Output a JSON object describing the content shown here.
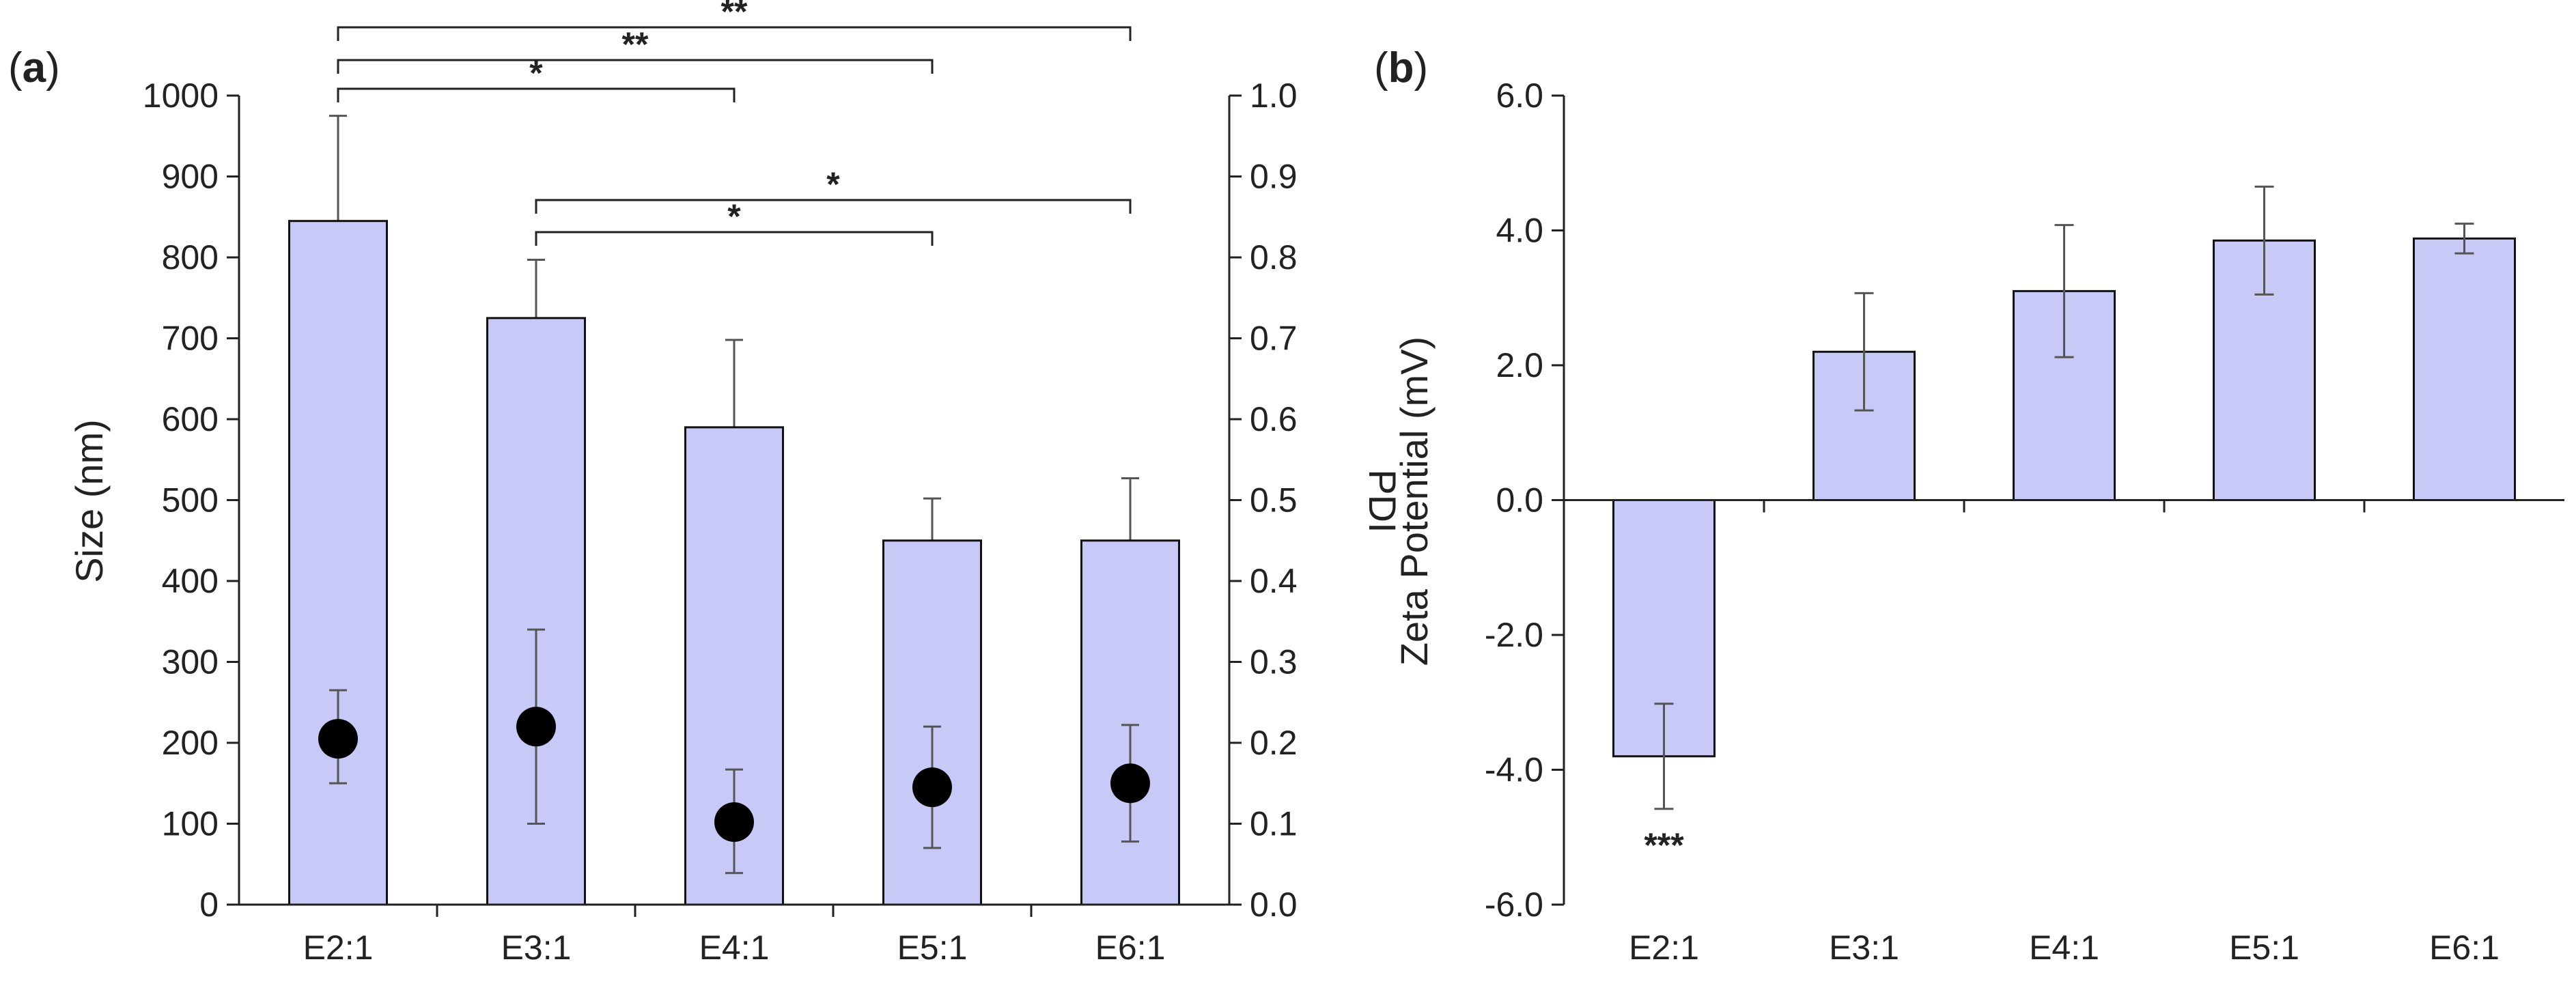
{
  "colors": {
    "bar_fill": "#c9c9f7",
    "bar_stroke": "#111111",
    "marker": "#000000",
    "error": "#555555",
    "axis": "#222222"
  },
  "chart_data": [
    {
      "type": "bar",
      "panel_label": "(a)",
      "panel_letter": "a",
      "categories": [
        "E2:1",
        "E3:1",
        "E4:1",
        "E5:1",
        "E6:1"
      ],
      "series": [
        {
          "name": "Size (nm)",
          "axis": "left",
          "values": [
            845,
            725,
            590,
            450,
            450
          ],
          "error_plus": [
            130,
            72,
            108,
            52,
            77
          ],
          "error_minus": [
            0,
            0,
            0,
            0,
            0
          ]
        },
        {
          "name": "PDI",
          "axis": "right",
          "marker": "circle",
          "values": [
            0.205,
            0.22,
            0.102,
            0.145,
            0.15
          ],
          "error_plus": [
            0.06,
            0.12,
            0.065,
            0.075,
            0.072
          ],
          "error_minus": [
            0.055,
            0.12,
            0.063,
            0.075,
            0.072
          ]
        }
      ],
      "ylabel": "Size (nm)",
      "ylim": [
        0,
        1000
      ],
      "yticks": [
        "0",
        "100",
        "200",
        "300",
        "400",
        "500",
        "600",
        "700",
        "800",
        "900",
        "1000"
      ],
      "y2label": "PDI",
      "y2lim": [
        0,
        1
      ],
      "y2ticks": [
        "0.0",
        "0.1",
        "0.2",
        "0.3",
        "0.4",
        "0.5",
        "0.6",
        "0.7",
        "0.8",
        "0.9",
        "1.0"
      ],
      "significance": [
        {
          "from": 0,
          "to": 4,
          "label": "**"
        },
        {
          "from": 0,
          "to": 3,
          "label": "**"
        },
        {
          "from": 0,
          "to": 2,
          "label": "*"
        },
        {
          "from": 1,
          "to": 4,
          "label": "*"
        },
        {
          "from": 1,
          "to": 3,
          "label": "*"
        }
      ]
    },
    {
      "type": "bar",
      "panel_label": "(b)",
      "panel_letter": "b",
      "categories": [
        "E2:1",
        "E3:1",
        "E4:1",
        "E5:1",
        "E6:1"
      ],
      "series": [
        {
          "name": "Zeta Potential (mV)",
          "values": [
            -3.8,
            2.2,
            3.1,
            3.85,
            3.88
          ],
          "error": [
            0.78,
            0.87,
            0.98,
            0.8,
            0.22
          ]
        }
      ],
      "ylabel": "Zeta Potential (mV)",
      "ylim": [
        -6,
        6
      ],
      "yticks": [
        "-6.0",
        "-4.0",
        "-2.0",
        "0.0",
        "2.0",
        "4.0",
        "6.0"
      ],
      "annotations": [
        {
          "category": 0,
          "label": "***"
        }
      ]
    }
  ]
}
